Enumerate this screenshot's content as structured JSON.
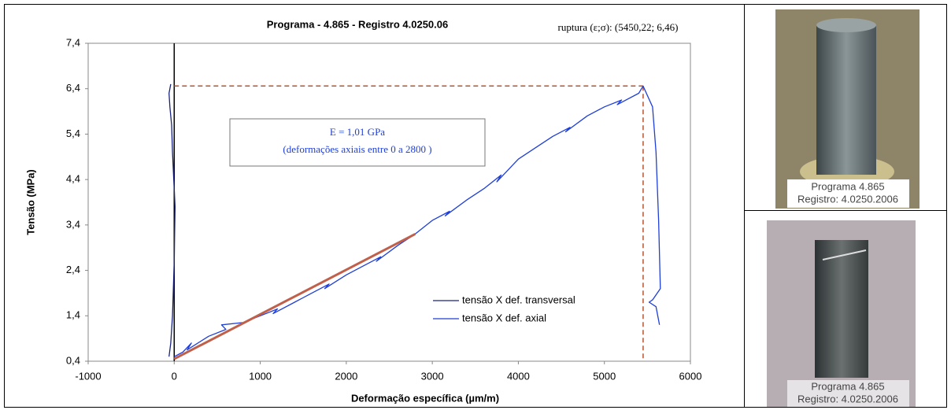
{
  "chart_data": {
    "type": "line",
    "title": "Programa - 4.865 - Registro  4.0250.06",
    "annotation": "ruptura (ε;σ): (5450,22; 6,46)",
    "rupture_point": [
      5450.22,
      6.46
    ],
    "rupture_color": "#b5552f",
    "modulus_label": "E = 1,01 GPa",
    "modulus_note": "(deformações axiais entre 0 a 2800 )",
    "x_label": "Deformação específica (µm/m)",
    "y_label": "Tensão (MPa)",
    "xlim": [
      -1000,
      6000
    ],
    "xticks": [
      -1000,
      0,
      1000,
      2000,
      3000,
      4000,
      5000,
      6000
    ],
    "ylim": [
      0.4,
      7.4
    ],
    "yticks": [
      {
        "value": 0.4,
        "label": "0,4"
      },
      {
        "value": 1.4,
        "label": "1,4"
      },
      {
        "value": 2.4,
        "label": "2,4"
      },
      {
        "value": 3.4,
        "label": "3,4"
      },
      {
        "value": 4.4,
        "label": "4,4"
      },
      {
        "value": 5.4,
        "label": "5,4"
      },
      {
        "value": 6.4,
        "label": "6,4"
      },
      {
        "value": 7.4,
        "label": "7,4"
      }
    ],
    "grid": false,
    "series": [
      {
        "name": "tensão X def. transversal",
        "color": "#1a237e",
        "x": [
          -60,
          -40,
          -20,
          -10,
          0,
          5,
          10,
          -5,
          -20,
          -30,
          -50,
          -60,
          -40
        ],
        "values": [
          0.5,
          0.8,
          1.4,
          2.0,
          2.6,
          3.2,
          3.8,
          4.4,
          5.0,
          5.6,
          6.0,
          6.3,
          6.5
        ]
      },
      {
        "name": "tensão X def. axial",
        "color": "#1f3fd6",
        "x": [
          0,
          100,
          200,
          150,
          400,
          600,
          550,
          800,
          1000,
          1200,
          1150,
          1400,
          1600,
          1800,
          1750,
          2000,
          2200,
          2400,
          2350,
          2600,
          2800,
          3000,
          3200,
          3150,
          3400,
          3600,
          3800,
          3750,
          4000,
          4200,
          4400,
          4600,
          4550,
          4800,
          5000,
          5200,
          5150,
          5400,
          5450,
          5560,
          5600,
          5630,
          5650,
          5560,
          5520,
          5600,
          5640
        ],
        "values": [
          0.5,
          0.6,
          0.8,
          0.65,
          0.95,
          1.1,
          1.2,
          1.25,
          1.4,
          1.55,
          1.45,
          1.7,
          1.9,
          2.1,
          2.0,
          2.3,
          2.5,
          2.7,
          2.6,
          2.95,
          3.2,
          3.5,
          3.7,
          3.6,
          3.95,
          4.2,
          4.5,
          4.35,
          4.85,
          5.1,
          5.35,
          5.55,
          5.45,
          5.8,
          6.0,
          6.15,
          6.05,
          6.3,
          6.46,
          6.0,
          5.0,
          3.5,
          2.0,
          1.75,
          1.7,
          1.6,
          1.2
        ]
      }
    ],
    "fit_line": {
      "color": "#c0604a",
      "x": [
        0,
        2800
      ],
      "values": [
        0.45,
        3.2
      ]
    }
  },
  "photos": [
    {
      "lines": [
        "Programa 4.865",
        "Registro: 4.0250.2006"
      ]
    },
    {
      "lines": [
        "Programa 4.865",
        "Registro: 4.0250.2006"
      ]
    }
  ]
}
